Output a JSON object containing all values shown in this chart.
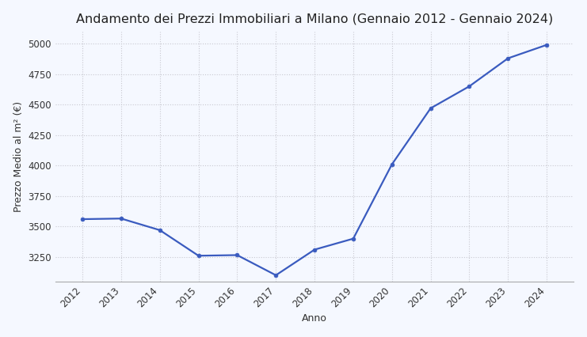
{
  "title": "Andamento dei Prezzi Immobiliari a Milano (Gennaio 2012 - Gennaio 2024)",
  "xlabel": "Anno",
  "ylabel": "Prezzo Medio al m² (€)",
  "years": [
    2012,
    2013,
    2014,
    2015,
    2016,
    2017,
    2018,
    2019,
    2020,
    2021,
    2022,
    2023,
    2024
  ],
  "values": [
    3560,
    3565,
    3470,
    3260,
    3265,
    3100,
    3310,
    3400,
    4010,
    4470,
    4650,
    4880,
    4990
  ],
  "line_color": "#3a5bbf",
  "marker": "o",
  "marker_size": 3.5,
  "line_width": 1.6,
  "background_color": "#f5f8ff",
  "plot_bg_color": "#f5f8ff",
  "grid_color": "#c8c8d0",
  "grid_style": ":",
  "ylim": [
    3050,
    5100
  ],
  "yticks": [
    3250,
    3500,
    3750,
    4000,
    4250,
    4500,
    4750,
    5000
  ],
  "title_fontsize": 11.5,
  "label_fontsize": 9,
  "tick_fontsize": 8.5
}
